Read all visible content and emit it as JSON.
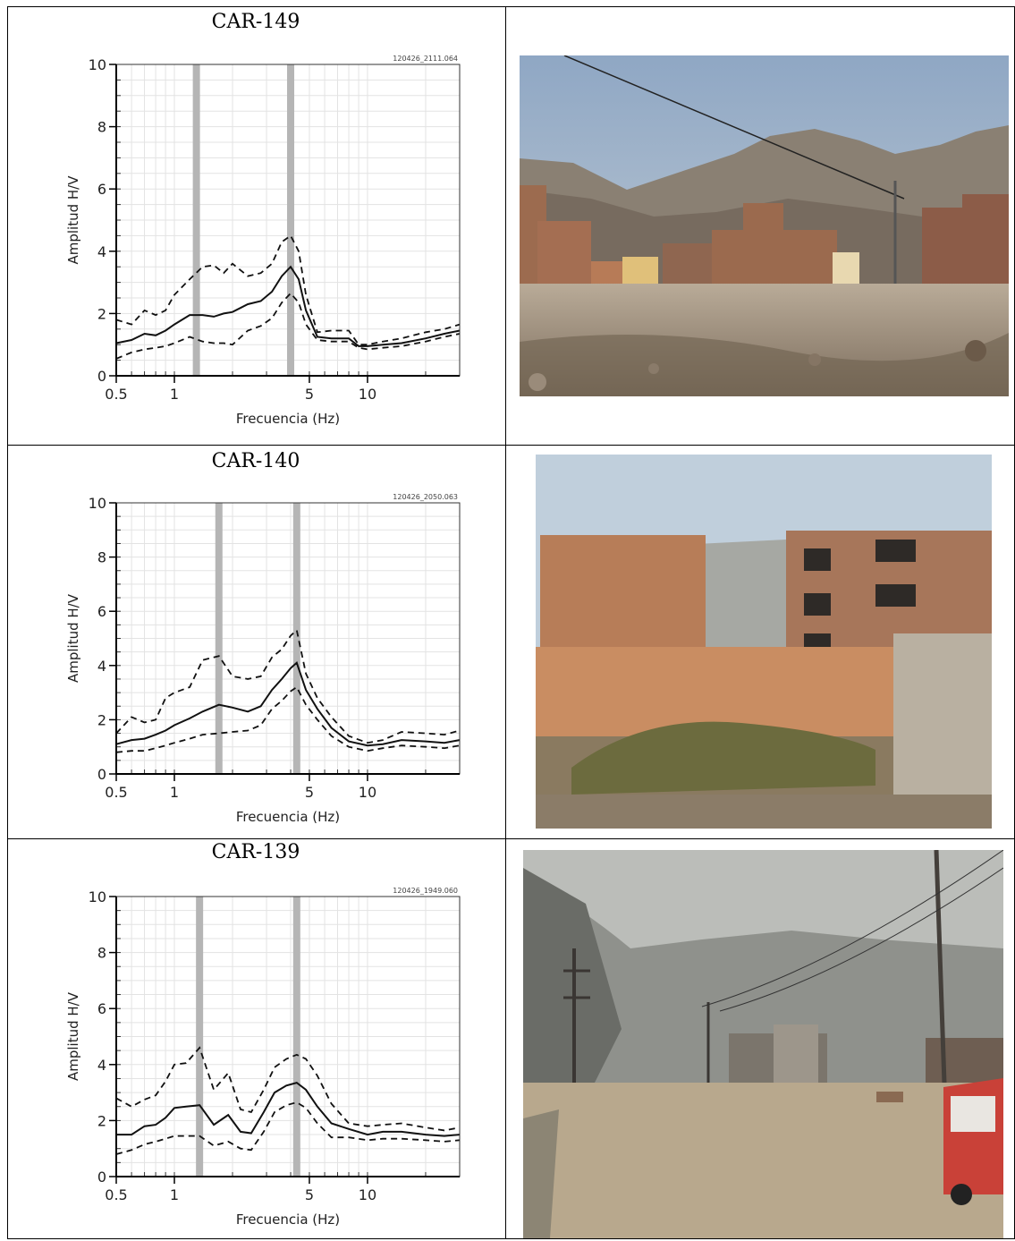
{
  "colors": {
    "band": "#b5b5b5",
    "curve": "#111111",
    "grid": "#e3e3e3",
    "axis": "#333333"
  },
  "panels": [
    {
      "title": "CAR-149",
      "photo": "photo-street-mountains-brick-houses",
      "chart_data": {
        "type": "line",
        "file_id": "120426_2111.064",
        "xlabel": "Frecuencia (Hz)",
        "ylabel": "Amplitud H/V",
        "xscale": "log",
        "xlim": [
          0.5,
          30
        ],
        "ylim": [
          0,
          10
        ],
        "xticks": [
          0.5,
          1,
          5,
          10
        ],
        "xtick_labels": [
          "0.5",
          "1",
          "5",
          "10"
        ],
        "yticks": [
          0,
          2,
          4,
          6,
          8,
          10
        ],
        "bands": [
          1.3,
          4.0
        ],
        "x": [
          0.5,
          0.6,
          0.7,
          0.8,
          0.9,
          1.0,
          1.2,
          1.4,
          1.6,
          1.8,
          2.0,
          2.4,
          2.8,
          3.2,
          3.6,
          4.0,
          4.4,
          4.8,
          5.5,
          6.5,
          8.0,
          9.0,
          10.0,
          12.0,
          15.0,
          20.0,
          25.0,
          30.0
        ],
        "series": [
          {
            "values": [
              1.05,
              1.15,
              1.35,
              1.3,
              1.45,
              1.65,
              1.95,
              1.95,
              1.9,
              2.0,
              2.05,
              2.3,
              2.4,
              2.7,
              3.2,
              3.5,
              3.1,
              2.1,
              1.25,
              1.2,
              1.2,
              0.95,
              0.95,
              1.0,
              1.05,
              1.2,
              1.35,
              1.45
            ]
          },
          {
            "values": [
              1.8,
              1.65,
              2.1,
              1.95,
              2.1,
              2.6,
              3.1,
              3.5,
              3.55,
              3.3,
              3.6,
              3.2,
              3.3,
              3.6,
              4.3,
              4.5,
              4.0,
              2.6,
              1.4,
              1.45,
              1.45,
              1.0,
              1.0,
              1.1,
              1.2,
              1.4,
              1.5,
              1.65
            ]
          },
          {
            "values": [
              0.55,
              0.75,
              0.85,
              0.9,
              0.95,
              1.05,
              1.25,
              1.1,
              1.05,
              1.05,
              1.0,
              1.45,
              1.6,
              1.85,
              2.35,
              2.65,
              2.35,
              1.65,
              1.15,
              1.1,
              1.1,
              0.9,
              0.85,
              0.9,
              0.95,
              1.1,
              1.25,
              1.35
            ]
          }
        ]
      }
    },
    {
      "title": "CAR-140",
      "photo": "photo-brick-wall-buildings",
      "chart_data": {
        "type": "line",
        "file_id": "120426_2050.063",
        "xlabel": "Frecuencia (Hz)",
        "ylabel": "Amplitud H/V",
        "xscale": "log",
        "xlim": [
          0.5,
          30
        ],
        "ylim": [
          0,
          10
        ],
        "xticks": [
          0.5,
          1,
          5,
          10
        ],
        "xtick_labels": [
          "0.5",
          "1",
          "5",
          "10"
        ],
        "yticks": [
          0,
          2,
          4,
          6,
          8,
          10
        ],
        "bands": [
          1.7,
          4.3
        ],
        "x": [
          0.5,
          0.6,
          0.7,
          0.8,
          0.9,
          1.0,
          1.2,
          1.4,
          1.7,
          2.0,
          2.4,
          2.8,
          3.2,
          3.6,
          4.0,
          4.3,
          4.8,
          5.5,
          6.5,
          8.0,
          10.0,
          12.0,
          15.0,
          20.0,
          25.0,
          30.0
        ],
        "series": [
          {
            "values": [
              1.1,
              1.25,
              1.3,
              1.45,
              1.6,
              1.8,
              2.05,
              2.3,
              2.55,
              2.45,
              2.3,
              2.5,
              3.1,
              3.5,
              3.9,
              4.1,
              3.1,
              2.4,
              1.7,
              1.2,
              1.05,
              1.1,
              1.25,
              1.2,
              1.15,
              1.25
            ]
          },
          {
            "values": [
              1.5,
              2.1,
              1.9,
              2.0,
              2.8,
              3.0,
              3.2,
              4.2,
              4.35,
              3.6,
              3.5,
              3.6,
              4.3,
              4.6,
              5.1,
              5.3,
              3.7,
              2.8,
              2.1,
              1.4,
              1.15,
              1.25,
              1.55,
              1.5,
              1.45,
              1.6
            ]
          },
          {
            "values": [
              0.8,
              0.85,
              0.85,
              0.95,
              1.05,
              1.15,
              1.3,
              1.45,
              1.5,
              1.55,
              1.6,
              1.8,
              2.4,
              2.7,
              3.05,
              3.2,
              2.55,
              2.0,
              1.4,
              1.0,
              0.85,
              0.95,
              1.05,
              1.0,
              0.95,
              1.05
            ]
          }
        ]
      }
    },
    {
      "title": "CAR-139",
      "photo": "photo-hazy-dirt-road-poles",
      "chart_data": {
        "type": "line",
        "file_id": "120426_1949.060",
        "xlabel": "Frecuencia (Hz)",
        "ylabel": "Amplitud H/V",
        "xscale": "log",
        "xlim": [
          0.5,
          30
        ],
        "ylim": [
          0,
          10
        ],
        "xticks": [
          0.5,
          1,
          5,
          10
        ],
        "xtick_labels": [
          "0.5",
          "1",
          "5",
          "10"
        ],
        "yticks": [
          0,
          2,
          4,
          6,
          8,
          10
        ],
        "bands": [
          1.35,
          4.3
        ],
        "x": [
          0.5,
          0.6,
          0.7,
          0.8,
          0.9,
          1.0,
          1.15,
          1.35,
          1.6,
          1.9,
          2.2,
          2.5,
          2.9,
          3.3,
          3.8,
          4.3,
          4.8,
          5.5,
          6.5,
          8.0,
          10.0,
          12.0,
          15.0,
          20.0,
          25.0,
          30.0
        ],
        "series": [
          {
            "values": [
              1.5,
              1.5,
              1.8,
              1.85,
              2.1,
              2.45,
              2.5,
              2.55,
              1.85,
              2.2,
              1.6,
              1.55,
              2.3,
              3.0,
              3.25,
              3.35,
              3.1,
              2.5,
              1.9,
              1.7,
              1.5,
              1.6,
              1.6,
              1.5,
              1.45,
              1.5
            ]
          },
          {
            "values": [
              2.8,
              2.5,
              2.75,
              2.9,
              3.4,
              4.0,
              4.05,
              4.6,
              3.1,
              3.7,
              2.4,
              2.3,
              3.1,
              3.9,
              4.2,
              4.35,
              4.2,
              3.6,
              2.6,
              1.9,
              1.8,
              1.85,
              1.9,
              1.75,
              1.65,
              1.75
            ]
          },
          {
            "values": [
              0.8,
              0.95,
              1.15,
              1.25,
              1.35,
              1.45,
              1.45,
              1.45,
              1.1,
              1.25,
              1.0,
              0.95,
              1.6,
              2.3,
              2.55,
              2.65,
              2.45,
              1.9,
              1.4,
              1.4,
              1.3,
              1.35,
              1.35,
              1.3,
              1.25,
              1.3
            ]
          }
        ]
      }
    }
  ]
}
